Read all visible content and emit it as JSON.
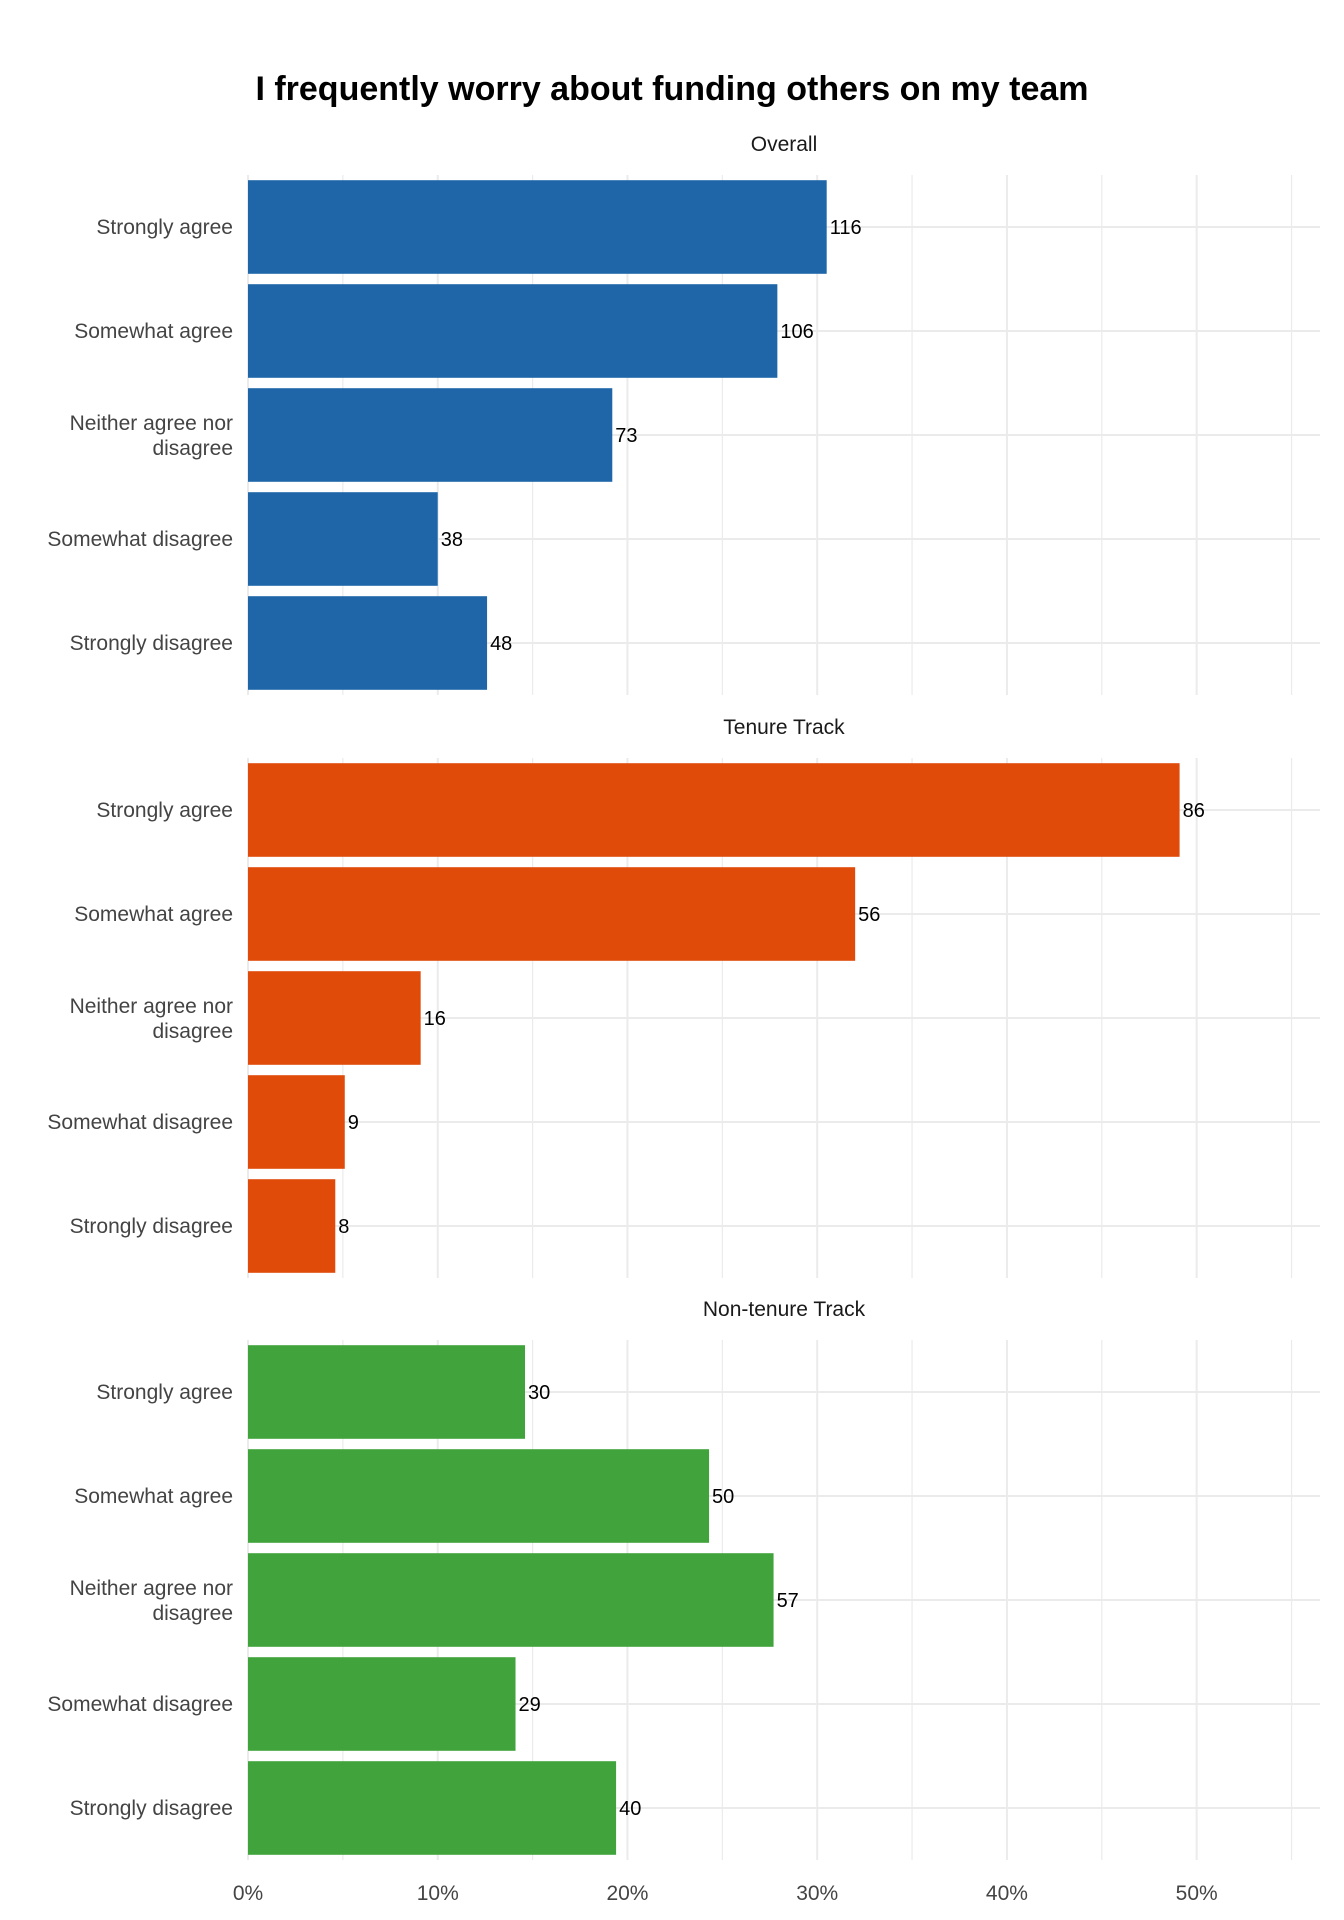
{
  "chart_data": {
    "type": "bar",
    "orientation": "horizontal",
    "title": "I frequently worry about funding others on my team",
    "xlabel": "",
    "ylabel": "",
    "xlim": [
      0,
      0.565
    ],
    "xticks": [
      {
        "value": 0.0,
        "label": "0%"
      },
      {
        "value": 0.1,
        "label": "10%"
      },
      {
        "value": 0.2,
        "label": "20%"
      },
      {
        "value": 0.3,
        "label": "30%"
      },
      {
        "value": 0.4,
        "label": "40%"
      },
      {
        "value": 0.5,
        "label": "50%"
      }
    ],
    "grid": true,
    "categories": [
      "Strongly agree",
      "Somewhat agree",
      "Neither agree nor disagree",
      "Somewhat disagree",
      "Strongly disagree"
    ],
    "facets": [
      {
        "name": "Overall",
        "color": "#1f66a8",
        "counts": [
          116,
          106,
          73,
          38,
          48
        ],
        "proportions": [
          0.305,
          0.279,
          0.192,
          0.1,
          0.126
        ]
      },
      {
        "name": "Tenure Track",
        "color": "#e04b0a",
        "counts": [
          86,
          56,
          16,
          9,
          8
        ],
        "proportions": [
          0.491,
          0.32,
          0.091,
          0.051,
          0.046
        ]
      },
      {
        "name": "Non-tenure Track",
        "color": "#41a33b",
        "counts": [
          30,
          50,
          57,
          29,
          40
        ],
        "proportions": [
          0.146,
          0.243,
          0.277,
          0.141,
          0.194
        ]
      }
    ]
  }
}
